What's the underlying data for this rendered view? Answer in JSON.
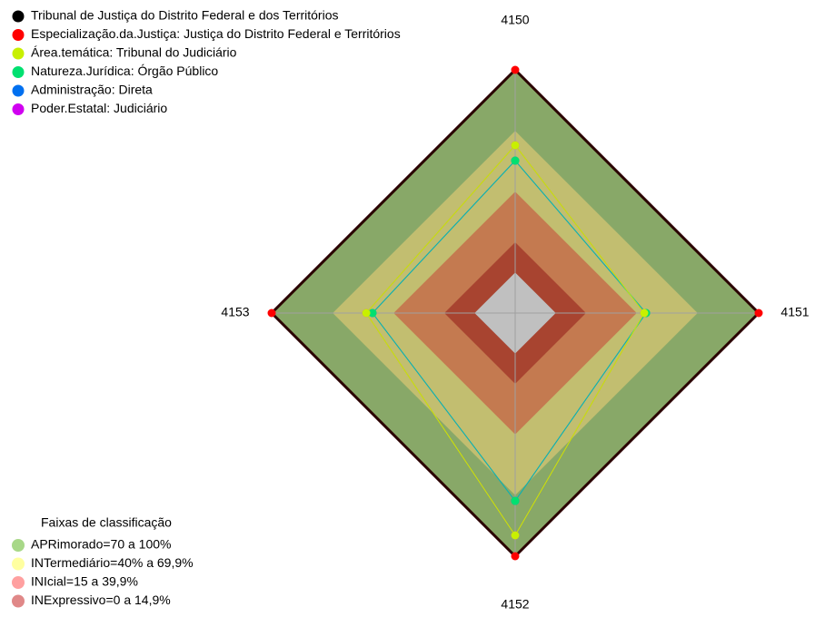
{
  "chart_data": {
    "type": "radar",
    "categories": [
      "4150",
      "4151",
      "4152",
      "4153"
    ],
    "rlim": [
      -20,
      100
    ],
    "series": [
      {
        "name": "Tribunal de Justiça do Distrito Federal e dos Territórios",
        "color": "#000000",
        "line_color": "#2a0000",
        "values": [
          100,
          100,
          100,
          100
        ]
      },
      {
        "name": "Especialização.da.Justiça: Justiça do Distrito Federal e Territórios",
        "color": "#ff0000",
        "line_color": "#ff0000",
        "values": [
          100,
          100,
          100,
          100
        ]
      },
      {
        "name": "Área.temática: Tribunal do Judiciário",
        "color": "#c8f000",
        "line_color": "#c8f000",
        "values": [
          62.8,
          43.6,
          89.7,
          53.4
        ]
      },
      {
        "name": "Natureza.Jurídica: Órgão Público",
        "color": "#00e070",
        "line_color": "#10b0b0",
        "values": [
          55.2,
          44.5,
          72.7,
          50.3
        ]
      },
      {
        "name": "Administração: Direta",
        "color": "#0070f0",
        "line_color": "#10b0b0",
        "values": [
          55.2,
          44.5,
          72.7,
          50.3
        ]
      },
      {
        "name": "Poder.Estatal: Judiciário",
        "color": "#d000f0",
        "line_color": "#c04080",
        "values": [
          62.8,
          43.6,
          89.7,
          53.4
        ]
      }
    ],
    "bands_title": "Faixas de classificação",
    "bands": [
      {
        "label": "APRimorado=70 a 100%",
        "color": "#88a868",
        "swatch": "#a8d888",
        "min": 70,
        "max": 100
      },
      {
        "label": "INTermediário=40% a 69,9%",
        "color": "#c2be70",
        "swatch": "#ffffa0",
        "min": 40,
        "max": 69.9
      },
      {
        "label": "INIcial=15 a 39,9%",
        "color": "#c47a50",
        "swatch": "#ffa0a0",
        "min": 15,
        "max": 39.9
      },
      {
        "label": "INExpressivo=0 a 14,9%",
        "color": "#a84430",
        "swatch": "#e08888",
        "min": 0,
        "max": 14.9
      }
    ],
    "inner_color": "#c0c0c0"
  }
}
